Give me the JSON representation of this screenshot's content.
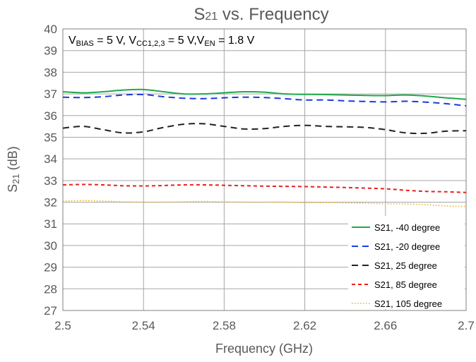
{
  "chart_data": {
    "type": "line",
    "title_main": "S",
    "title_sub": "21",
    "title_rest": " vs. Frequency",
    "ylabel_main": "S",
    "ylabel_sub": "21",
    "ylabel_rest": " (dB)",
    "xlabel": "Frequency (GHz)",
    "annotation": {
      "p1": "V",
      "p1_sub": "BIAS",
      "p2": " = 5 V, V",
      "p2_sub": "CC1,2,3",
      "p3": " = 5 V,V",
      "p3_sub": "EN",
      "p4": " = 1.8 V"
    },
    "xlim": [
      2.5,
      2.7
    ],
    "ylim": [
      27,
      40
    ],
    "x_ticks": [
      "2.5",
      "2.54",
      "2.58",
      "2.62",
      "2.66",
      "2.7"
    ],
    "y_ticks": [
      "27",
      "28",
      "29",
      "30",
      "31",
      "32",
      "33",
      "34",
      "35",
      "36",
      "37",
      "38",
      "39",
      "40"
    ],
    "grid": true,
    "legend_position": "bottom-right",
    "x": [
      2.5,
      2.51,
      2.52,
      2.53,
      2.54,
      2.55,
      2.56,
      2.57,
      2.58,
      2.59,
      2.6,
      2.61,
      2.62,
      2.63,
      2.64,
      2.65,
      2.66,
      2.67,
      2.68,
      2.69,
      2.7
    ],
    "series": [
      {
        "name": "S21, -40 degree",
        "color": "#22a84a",
        "dash": "solid",
        "values": [
          37.1,
          37.05,
          37.1,
          37.18,
          37.2,
          37.1,
          37.0,
          37.0,
          37.05,
          37.1,
          37.08,
          37.0,
          36.98,
          36.97,
          36.95,
          36.93,
          36.92,
          36.95,
          36.9,
          36.82,
          36.75
        ]
      },
      {
        "name": "S21, -20 degree",
        "color": "#1a3be0",
        "dash": "dash",
        "values": [
          36.85,
          36.83,
          36.87,
          36.95,
          36.97,
          36.87,
          36.8,
          36.78,
          36.82,
          36.85,
          36.83,
          36.78,
          36.72,
          36.72,
          36.68,
          36.65,
          36.63,
          36.66,
          36.62,
          36.55,
          36.45
        ]
      },
      {
        "name": "S21, 25 degree",
        "color": "#222222",
        "dash": "dash",
        "values": [
          35.42,
          35.5,
          35.35,
          35.2,
          35.25,
          35.45,
          35.6,
          35.62,
          35.5,
          35.38,
          35.4,
          35.5,
          35.55,
          35.5,
          35.48,
          35.45,
          35.35,
          35.2,
          35.18,
          35.28,
          35.3
        ]
      },
      {
        "name": "S21, 85 degree",
        "color": "#e8201f",
        "dash": "dash-short",
        "values": [
          32.8,
          32.82,
          32.8,
          32.76,
          32.75,
          32.77,
          32.8,
          32.8,
          32.78,
          32.76,
          32.74,
          32.73,
          32.72,
          32.7,
          32.68,
          32.65,
          32.62,
          32.55,
          32.5,
          32.48,
          32.45
        ]
      },
      {
        "name": "S21, 105 degree",
        "color": "#f0b020",
        "dash": "dot",
        "values": [
          32.05,
          32.08,
          32.05,
          32.02,
          32.0,
          32.0,
          32.02,
          32.03,
          32.02,
          32.0,
          32.0,
          32.0,
          31.98,
          31.98,
          31.97,
          31.95,
          31.93,
          31.92,
          31.88,
          31.83,
          31.8
        ]
      }
    ]
  }
}
